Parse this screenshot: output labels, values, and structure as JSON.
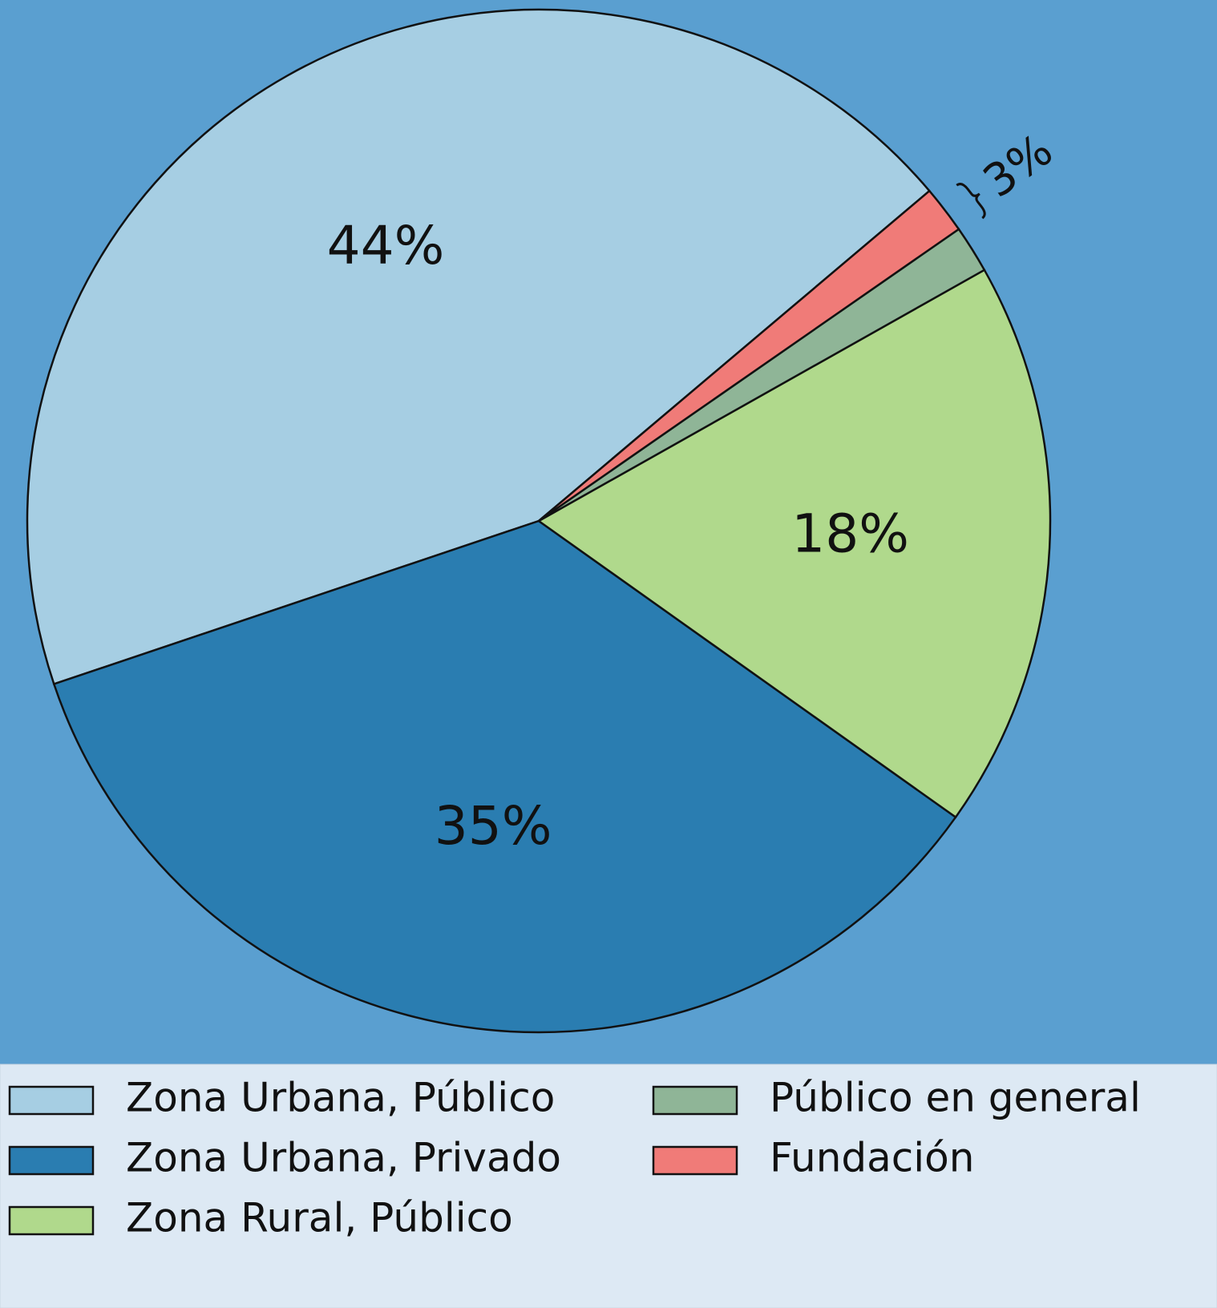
{
  "chart_data": {
    "type": "pie",
    "categories": [
      "Zona Urbana, Público",
      "Zona Urbana, Privado",
      "Zona Rural, Público",
      "Público en general",
      "Fundación"
    ],
    "values": [
      44,
      35,
      18,
      1.5,
      1.5
    ],
    "value_labels": [
      "44%",
      "35%",
      "18%",
      null,
      null
    ],
    "colors": [
      "#a6cee3",
      "#2a7db1",
      "#b0d98c",
      "#8fb597",
      "#f07b78"
    ],
    "annotation": "3%",
    "legend": "bottom"
  }
}
